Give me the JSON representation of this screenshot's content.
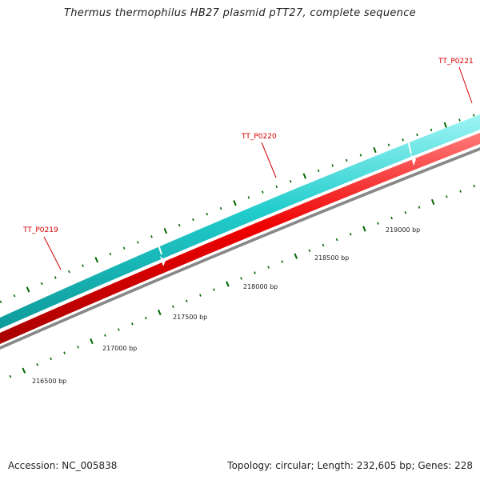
{
  "title": "Thermus thermophilus HB27 plasmid pTT27, complete sequence",
  "footer": {
    "accession": "Accession: NC_005838",
    "summary": "Topology: circular; Length: 232,605 bp; Genes: 228"
  },
  "genes": [
    {
      "name": "TT_P0219"
    },
    {
      "name": "TT_P0220"
    },
    {
      "name": "TT_P0221"
    }
  ],
  "position_labels": [
    "216500 bp",
    "217000 bp",
    "217500 bp",
    "218000 bp",
    "218500 bp",
    "219000 bp"
  ],
  "colors": {
    "forward_strand": "#22cccc",
    "reverse_strand": "#ee0000",
    "backbone": "#888888",
    "ticks": "#006600",
    "gene_label": "#d40000"
  }
}
